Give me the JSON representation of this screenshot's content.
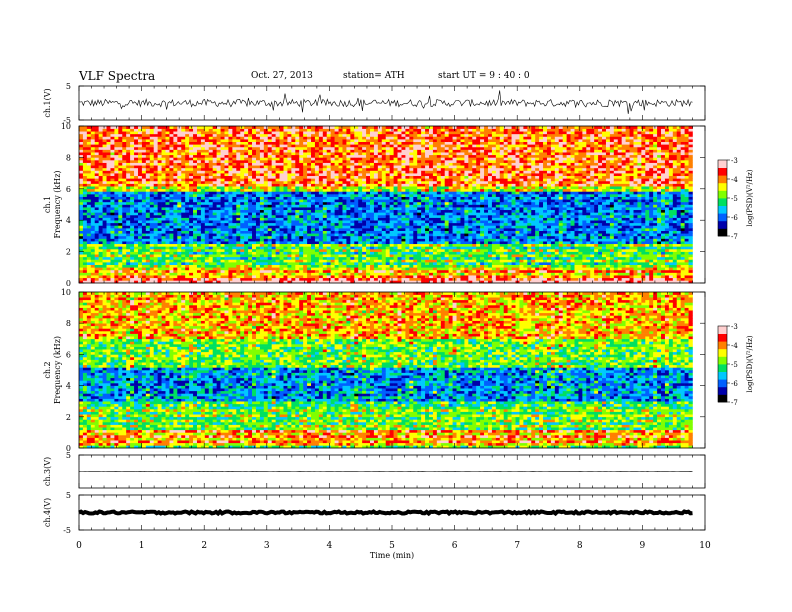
{
  "header": {
    "title": "VLF  Spectra",
    "date": "Oct. 27, 2013",
    "station": "station= ATH",
    "start": "start  UT  =   9 : 40 : 0"
  },
  "chart_data": [
    {
      "type": "line",
      "panel": "ch1-waveform",
      "ylabel": "ch.1(V)",
      "ylim": [
        -5,
        5
      ],
      "yticks": [
        "5",
        "-5"
      ],
      "xlim": [
        0,
        10
      ],
      "series": [
        {
          "baseline": 0,
          "amplitude": 1.1
        }
      ]
    },
    {
      "type": "heatmap",
      "panel": "ch1-spectrogram",
      "ylabel_line1": "ch.1",
      "ylabel_line2": "Frequency  (kHz)",
      "ylim": [
        0,
        10
      ],
      "yticks": [
        "0",
        "2",
        "4",
        "6",
        "8",
        "10"
      ],
      "xlim": [
        0,
        10
      ],
      "colorbar": {
        "label": "log(PSD)(V²/Hz)",
        "range": [
          -7,
          -3
        ],
        "ticks": [
          "-3",
          "-4",
          "-5",
          "-6",
          "-7"
        ],
        "colors": [
          "#000000",
          "#0000aa",
          "#0060ff",
          "#00c8ff",
          "#00e060",
          "#80ff00",
          "#ffff00",
          "#ff8000",
          "#ff0000",
          "#ffd0d0"
        ]
      },
      "bands": [
        {
          "from": 6.2,
          "to": 10,
          "level": -3.8
        },
        {
          "from": 5.8,
          "to": 6.2,
          "level": -4.6
        },
        {
          "from": 2.5,
          "to": 5.8,
          "level": -5.9
        },
        {
          "from": 1.0,
          "to": 2.5,
          "level": -5.2
        },
        {
          "from": 0.3,
          "to": 1.0,
          "level": -4.4
        },
        {
          "from": 0,
          "to": 0.3,
          "level": -3.5
        }
      ],
      "duration_min": 9.8
    },
    {
      "type": "heatmap",
      "panel": "ch2-spectrogram",
      "ylabel_line1": "ch.2",
      "ylabel_line2": "Frequency  (kHz)",
      "ylim": [
        0,
        10
      ],
      "yticks": [
        "0",
        "2",
        "4",
        "6",
        "8",
        "10"
      ],
      "xlim": [
        0,
        10
      ],
      "colorbar": {
        "label": "log(PSD)(V²/Hz)",
        "range": [
          -7,
          -3
        ],
        "ticks": [
          "-3",
          "-4",
          "-5",
          "-6",
          "-7"
        ],
        "colors": [
          "#000000",
          "#0000aa",
          "#0060ff",
          "#00c8ff",
          "#00e060",
          "#80ff00",
          "#ffff00",
          "#ff8000",
          "#ff0000",
          "#ffd0d0"
        ]
      },
      "bands": [
        {
          "from": 7.0,
          "to": 10,
          "level": -4.2
        },
        {
          "from": 5.2,
          "to": 7.0,
          "level": -4.9
        },
        {
          "from": 3.0,
          "to": 5.2,
          "level": -5.8
        },
        {
          "from": 1.2,
          "to": 3.0,
          "level": -5.1
        },
        {
          "from": 0.2,
          "to": 1.2,
          "level": -4.3
        },
        {
          "from": 0,
          "to": 0.2,
          "level": -5.5
        }
      ],
      "duration_min": 9.8
    },
    {
      "type": "line",
      "panel": "ch3-waveform",
      "ylabel": "ch.3(V)",
      "ylim": [
        -5,
        5
      ],
      "yticks": [
        "5"
      ],
      "xlim": [
        0,
        10
      ],
      "series": [
        {
          "baseline": 0,
          "amplitude": 0.05
        }
      ]
    },
    {
      "type": "line",
      "panel": "ch4-waveform",
      "ylabel": "ch.4(V)",
      "ylim": [
        -5,
        5
      ],
      "yticks": [
        "5",
        "-5"
      ],
      "xlim": [
        0,
        10
      ],
      "series": [
        {
          "baseline": 0,
          "amplitude": 0.3
        }
      ]
    }
  ],
  "x_axis": {
    "label": "Time  (min)",
    "ticks": [
      "0",
      "1",
      "2",
      "3",
      "4",
      "5",
      "6",
      "7",
      "8",
      "9",
      "10"
    ]
  }
}
